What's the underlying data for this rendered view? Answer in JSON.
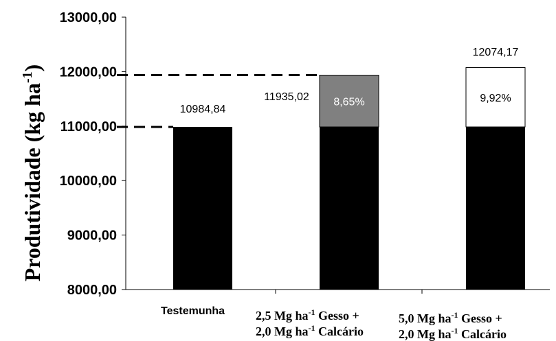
{
  "chart_data": {
    "type": "bar",
    "stacked": true,
    "title": "",
    "ylabel": "Produtividade (kg ha-1)",
    "ylabel_parts": {
      "main": "Produtividade (kg ha",
      "sup": "-1",
      "close": ")"
    },
    "ylim": [
      8000,
      13000
    ],
    "yticks": [
      "8000,00",
      "9000,00",
      "10000,00",
      "11000,00",
      "12000,00",
      "13000,00"
    ],
    "ytick_values": [
      8000,
      9000,
      10000,
      11000,
      12000,
      13000
    ],
    "categories": [
      {
        "lines": [
          {
            "text": "Testemunha",
            "style": "sans"
          }
        ]
      },
      {
        "lines": [
          {
            "pre": "2,5 Mg ha",
            "sup": "-1",
            "post": " Gesso +",
            "style": "serif"
          },
          {
            "pre": "2,0 Mg ha",
            "sup": "-1",
            "post": " Calcário",
            "style": "serif"
          }
        ]
      },
      {
        "lines": [
          {
            "pre": "5,0 Mg ha",
            "sup": "-1",
            "post": " Gesso +",
            "style": "serif"
          },
          {
            "pre": "2,0 Mg ha",
            "sup": "-1",
            "post": " Calcário",
            "style": "serif"
          }
        ]
      }
    ],
    "base_values": [
      10984.84,
      10984.84,
      10984.84
    ],
    "totals": [
      10984.84,
      11935.02,
      12074.17
    ],
    "total_labels": [
      "10984,84",
      "11935,02",
      "12074,17"
    ],
    "increments": [
      null,
      950.18,
      1089.33
    ],
    "increment_labels": [
      "",
      "8,65%",
      "9,92%"
    ],
    "colors": {
      "base": "#000000",
      "increments": [
        null,
        "#808080",
        "#ffffff"
      ],
      "increment_text": [
        null,
        "#ffffff",
        "#000000"
      ]
    },
    "reference_lines": [
      10984.84,
      11935.02
    ],
    "grid": false,
    "legend": "none"
  }
}
